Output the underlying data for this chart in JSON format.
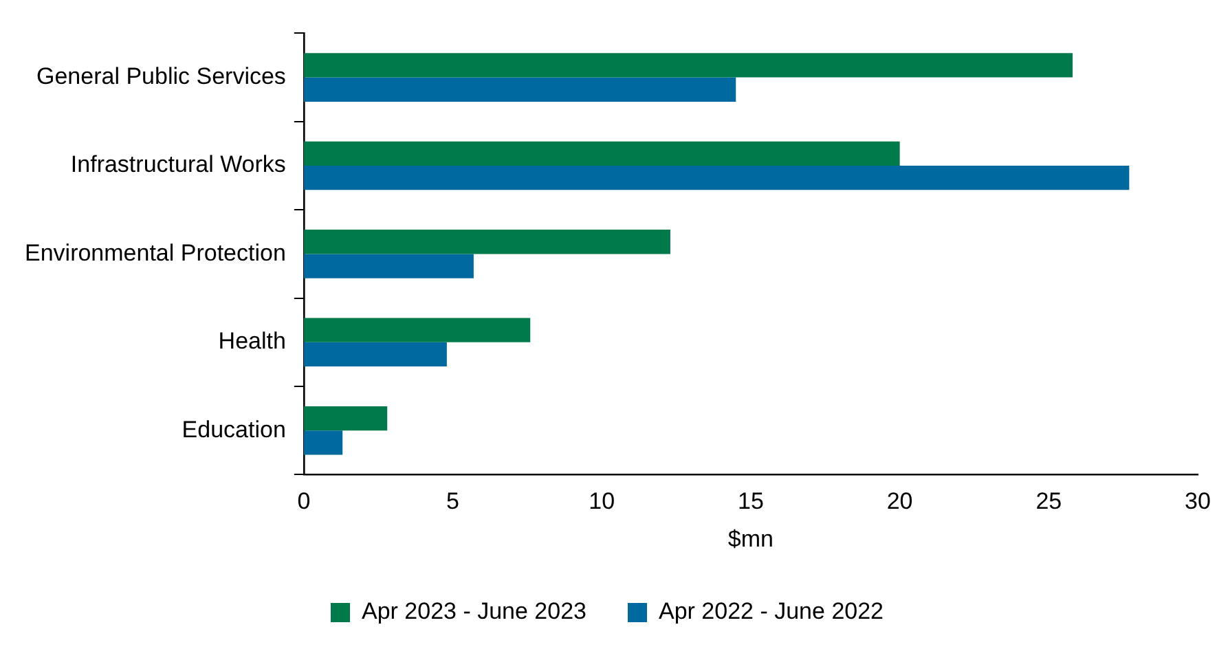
{
  "chart_data": {
    "type": "bar",
    "orientation": "horizontal",
    "xlabel": "$mn",
    "categories": [
      "General Public Services",
      "Infrastructural Works",
      "Environmental Protection",
      "Health",
      "Education"
    ],
    "series": [
      {
        "name": "Apr 2023 - June 2023",
        "color": "#007a4a",
        "values": [
          25.8,
          20.0,
          12.3,
          7.6,
          2.8
        ]
      },
      {
        "name": "Apr 2022 - June 2022",
        "color": "#006aa0",
        "values": [
          14.5,
          27.7,
          5.7,
          4.8,
          1.3
        ]
      }
    ],
    "xlim": [
      0,
      30
    ],
    "xticks": [
      0,
      5,
      10,
      15,
      20,
      25,
      30
    ],
    "grid": false,
    "legend": "bottom"
  }
}
